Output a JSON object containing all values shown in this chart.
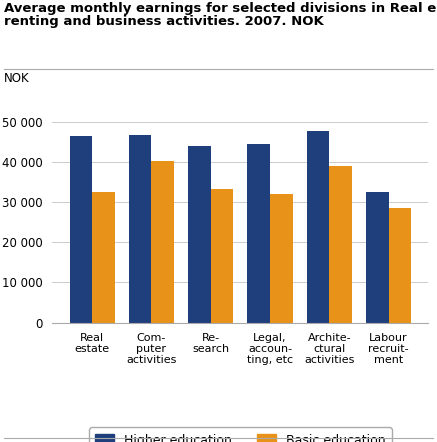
{
  "title_line1": "Average monthly earnings for selected divisions in Real estate,",
  "title_line2": "renting and business activities. 2007. NOK",
  "nok_label": "NOK",
  "categories": [
    "Real\nestate",
    "Com-\nputer\nactivities",
    "Re-\nsearch",
    "Legal,\naccoun-\nting, etc",
    "Archite-\nctural\nactivities",
    "Labour\nrecruit-\nment"
  ],
  "higher_education": [
    46500,
    46700,
    44000,
    44500,
    47700,
    32500
  ],
  "basic_education": [
    32400,
    40200,
    33300,
    32000,
    39000,
    28500
  ],
  "higher_color": "#1F3E7C",
  "basic_color": "#E8921A",
  "ylim": [
    0,
    55000
  ],
  "yticks": [
    0,
    10000,
    20000,
    30000,
    40000,
    50000
  ],
  "ytick_labels": [
    "0",
    "10 000",
    "20 000",
    "30 000",
    "40 000",
    "50 000"
  ],
  "legend_higher": "Higher education",
  "legend_basic": "Basic education",
  "bar_width": 0.38,
  "background_color": "#ffffff",
  "grid_color": "#cccccc",
  "title_fontsize": 9.5,
  "tick_fontsize": 8.5,
  "label_fontsize": 8.0,
  "nok_fontsize": 8.5,
  "legend_fontsize": 9.0
}
